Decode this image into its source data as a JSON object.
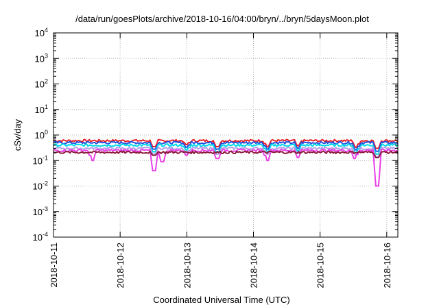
{
  "chart_data": {
    "type": "line",
    "title": "/data/run/goesPlots/archive/2018-10-16/04:00/bryn/../bryn/5daysMoon.plot",
    "xlabel": "Coordinated Universal Time (UTC)",
    "ylabel": "cSv/day",
    "yscale": "log",
    "ylim": [
      0.0001,
      10000
    ],
    "xlim": [
      "2018-10-11",
      "2018-10-16 04:00"
    ],
    "grid": true,
    "x_ticks": [
      "2018-10-11",
      "2018-10-12",
      "2018-10-13",
      "2018-10-14",
      "2018-10-15",
      "2018-10-16"
    ],
    "y_ticks": [
      {
        "base": "10",
        "exp": "-4"
      },
      {
        "base": "10",
        "exp": "-3"
      },
      {
        "base": "10",
        "exp": "-2"
      },
      {
        "base": "10",
        "exp": "-1"
      },
      {
        "base": "10",
        "exp": "0"
      },
      {
        "base": "10",
        "exp": "1"
      },
      {
        "base": "10",
        "exp": "2"
      },
      {
        "base": "10",
        "exp": "3"
      },
      {
        "base": "10",
        "exp": "4"
      }
    ],
    "series": [
      {
        "color": "#e8202a",
        "level": 0.6,
        "dips": [
          [
            "2018-10-12 12:15",
            0.35
          ],
          [
            "2018-10-13 00:00",
            0.42
          ],
          [
            "2018-10-13 11:00",
            0.35
          ],
          [
            "2018-10-14 05:00",
            0.35
          ],
          [
            "2018-10-14 16:00",
            0.38
          ],
          [
            "2018-10-15 13:00",
            0.33
          ],
          [
            "2018-10-15 20:30",
            0.3
          ]
        ]
      },
      {
        "color": "#2050e0",
        "level": 0.5,
        "dips": [
          [
            "2018-10-12 12:15",
            0.28
          ],
          [
            "2018-10-13 00:00",
            0.33
          ],
          [
            "2018-10-13 11:00",
            0.28
          ],
          [
            "2018-10-14 05:00",
            0.28
          ],
          [
            "2018-10-14 16:00",
            0.3
          ],
          [
            "2018-10-15 13:00",
            0.26
          ],
          [
            "2018-10-15 20:30",
            0.23
          ]
        ]
      },
      {
        "color": "#00d8e8",
        "level": 0.4,
        "dips": [
          [
            "2018-10-12 12:15",
            0.22
          ],
          [
            "2018-10-13 00:00",
            0.26
          ],
          [
            "2018-10-13 11:00",
            0.22
          ],
          [
            "2018-10-14 05:00",
            0.22
          ],
          [
            "2018-10-14 16:00",
            0.24
          ],
          [
            "2018-10-15 13:00",
            0.2
          ],
          [
            "2018-10-15 20:30",
            0.18
          ]
        ]
      },
      {
        "color": "#b0a0e8",
        "level": 0.3,
        "dips": [
          [
            "2018-10-12 12:15",
            0.18
          ],
          [
            "2018-10-13 00:00",
            0.2
          ],
          [
            "2018-10-13 11:00",
            0.18
          ],
          [
            "2018-10-14 05:00",
            0.18
          ],
          [
            "2018-10-14 16:00",
            0.19
          ],
          [
            "2018-10-15 13:00",
            0.16
          ],
          [
            "2018-10-15 20:30",
            0.14
          ]
        ]
      },
      {
        "color": "#e840e8",
        "level": 0.25,
        "dips": [
          [
            "2018-10-11 14:00",
            0.1
          ],
          [
            "2018-10-12 12:15",
            0.04
          ],
          [
            "2018-10-12 15:15",
            0.09
          ],
          [
            "2018-10-13 00:00",
            0.16
          ],
          [
            "2018-10-13 11:00",
            0.12
          ],
          [
            "2018-10-14 05:00",
            0.1
          ],
          [
            "2018-10-14 16:00",
            0.13
          ],
          [
            "2018-10-15 12:30",
            0.12
          ],
          [
            "2018-10-15 20:30",
            0.01
          ]
        ]
      },
      {
        "color": "#8b1a3a",
        "level": 0.21,
        "dips": [
          [
            "2018-10-12 12:15",
            0.16
          ],
          [
            "2018-10-15 20:30",
            0.13
          ]
        ]
      }
    ]
  }
}
